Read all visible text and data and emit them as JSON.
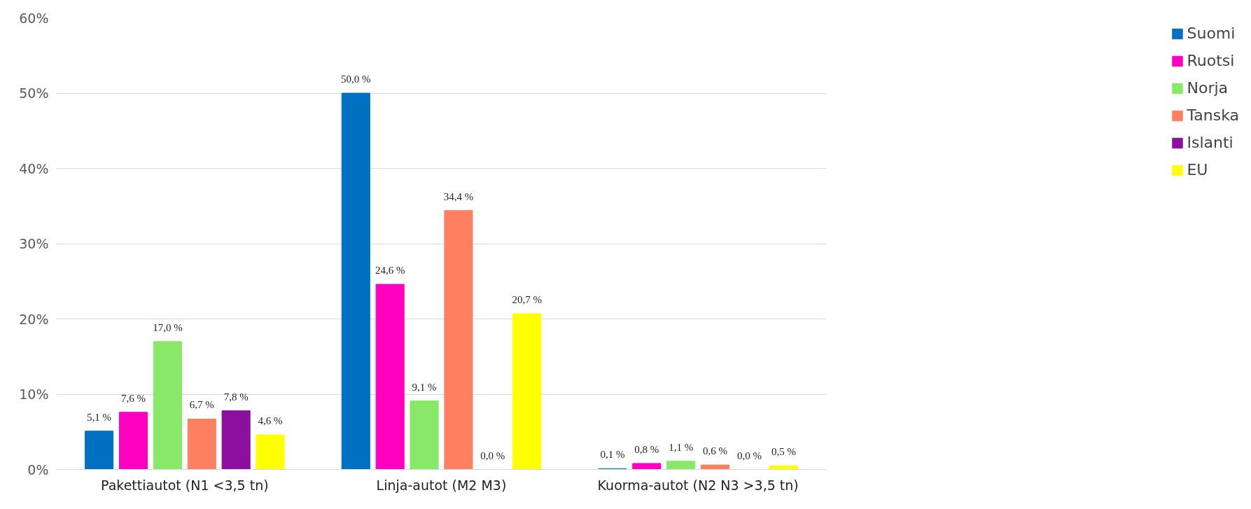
{
  "chart_data": {
    "type": "bar",
    "categories": [
      "Pakettiautot (N1 <3,5 tn)",
      "Linja-autot (M2 M3)",
      "Kuorma-autot (N2 N3 >3,5 tn)"
    ],
    "series": [
      {
        "name": "Suomi",
        "color": "#0070c0",
        "values": [
          5.1,
          50.0,
          0.1
        ],
        "value_labels": [
          "5,1 %",
          "50,0 %",
          "0,1 %"
        ]
      },
      {
        "name": "Ruotsi",
        "color": "#ff00c0",
        "values": [
          7.6,
          24.6,
          0.8
        ],
        "value_labels": [
          "7,6 %",
          "24,6 %",
          "0,8 %"
        ]
      },
      {
        "name": "Norja",
        "color": "#88e868",
        "values": [
          17.0,
          9.1,
          1.1
        ],
        "value_labels": [
          "17,0 %",
          "9,1 %",
          "1,1 %"
        ]
      },
      {
        "name": "Tanska",
        "color": "#ff8060",
        "values": [
          6.7,
          34.4,
          0.6
        ],
        "value_labels": [
          "6,7 %",
          "34,4 %",
          "0,6 %"
        ]
      },
      {
        "name": "Islanti",
        "color": "#8b10a0",
        "values": [
          7.8,
          0.0,
          0.0
        ],
        "value_labels": [
          "7,8 %",
          "0,0 %",
          "0,0 %"
        ]
      },
      {
        "name": "EU",
        "color": "#ffff00",
        "values": [
          4.6,
          20.7,
          0.5
        ],
        "value_labels": [
          "4,6 %",
          "20,7 %",
          "0,5 %"
        ]
      }
    ],
    "ylim": [
      0,
      60
    ],
    "yticks": [
      {
        "value": 0,
        "label": "0%"
      },
      {
        "value": 10,
        "label": "10%"
      },
      {
        "value": 20,
        "label": "20%"
      },
      {
        "value": 30,
        "label": "30%"
      },
      {
        "value": 40,
        "label": "40%"
      },
      {
        "value": 50,
        "label": "50%"
      },
      {
        "value": 60,
        "label": "60%"
      }
    ],
    "grid": "y",
    "legend": "right"
  }
}
